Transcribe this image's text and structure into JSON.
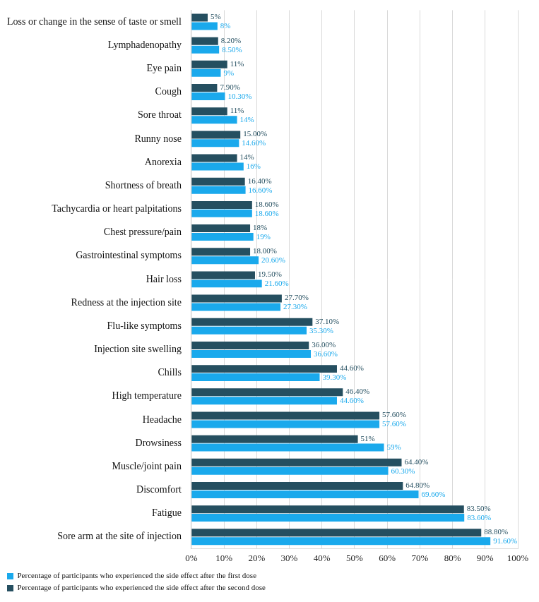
{
  "chart_data": {
    "type": "bar",
    "orientation": "horizontal",
    "categories": [
      "Loss or change in the sense of taste or smell",
      "Lymphadenopathy",
      "Eye pain",
      "Cough",
      "Sore throat",
      "Runny nose",
      "Anorexia",
      "Shortness of breath",
      "Tachycardia or heart palpitations",
      "Chest pressure/pain",
      "Gastrointestinal symptoms",
      "Hair loss",
      "Redness at the injection site",
      "Flu-like symptoms",
      "Injection site swelling",
      "Chills",
      "High temperature",
      "Headache",
      "Drowsiness",
      "Muscle/joint pain",
      "Discomfort",
      "Fatigue",
      "Sore arm at the site of injection"
    ],
    "series": [
      {
        "name": "Percentage of participants who experienced the side effect after the first dose",
        "color": "#1aa9ec",
        "values": [
          8,
          8.5,
          9,
          10.3,
          14,
          14.6,
          16,
          16.6,
          18.6,
          19,
          20.6,
          21.6,
          27.3,
          35.3,
          36.6,
          39.3,
          44.6,
          57.6,
          59,
          60.3,
          69.6,
          83.6,
          91.6
        ],
        "value_labels": [
          "8%",
          "8.50%",
          "9%",
          "10.30%",
          "14%",
          "14.60%",
          "16%",
          "16.60%",
          "18.60%",
          "19%",
          "20.60%",
          "21.60%",
          "27.30%",
          "35.30%",
          "36.60%",
          "39.30%",
          "44.60%",
          "57.60%",
          "59%",
          "60.30%",
          "69.60%",
          "83.60%",
          "91.60%"
        ]
      },
      {
        "name": "Percentage of participants who experienced the side effect after the second dose",
        "color": "#254f60",
        "values": [
          5,
          8.2,
          11,
          7.9,
          11,
          15.0,
          14,
          16.4,
          18.6,
          18,
          18.0,
          19.5,
          27.7,
          37.1,
          36.0,
          44.6,
          46.4,
          57.6,
          51,
          64.4,
          64.8,
          83.5,
          88.8
        ],
        "value_labels": [
          "5%",
          "8.20%",
          "11%",
          "7.90%",
          "11%",
          "15.00%",
          "14%",
          "16.40%",
          "18.60%",
          "18%",
          "18.00%",
          "19.50%",
          "27.70%",
          "37.10%",
          "36.00%",
          "44.60%",
          "46.40%",
          "57.60%",
          "51%",
          "64.40%",
          "64.80%",
          "83.50%",
          "88.80%"
        ]
      }
    ],
    "xlim": [
      0,
      100
    ],
    "xticks": [
      {
        "value": 0,
        "label": "0%"
      },
      {
        "value": 10,
        "label": "10%"
      },
      {
        "value": 20,
        "label": "20%"
      },
      {
        "value": 30,
        "label": "30%"
      },
      {
        "value": 40,
        "label": "40%"
      },
      {
        "value": 50,
        "label": "50%"
      },
      {
        "value": 60,
        "label": "60%"
      },
      {
        "value": 70,
        "label": "70%"
      },
      {
        "value": 80,
        "label": "80%"
      },
      {
        "value": 90,
        "label": "90%"
      },
      {
        "value": 100,
        "label": "100%"
      }
    ],
    "grid": true,
    "legend": "bottom-left",
    "data_labels": true
  }
}
